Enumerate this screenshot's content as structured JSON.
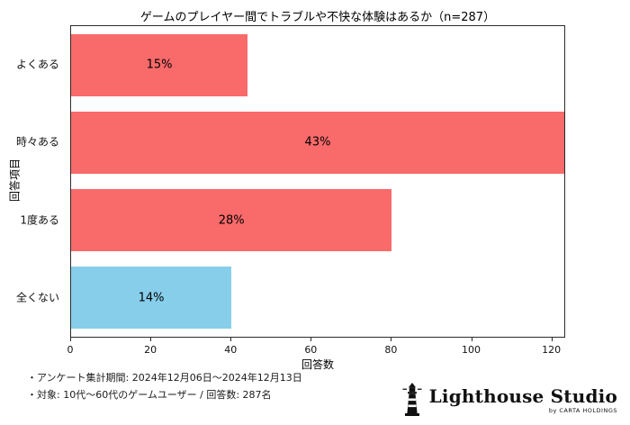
{
  "chart_data": {
    "type": "bar",
    "orientation": "horizontal",
    "title": "ゲームのプレイヤー間でトラブルや不快な体験はあるか（n=287）",
    "categories": [
      "よくある",
      "時々ある",
      "1度ある",
      "全くない"
    ],
    "values": [
      44,
      123,
      80,
      40
    ],
    "percent_labels": [
      "15%",
      "43%",
      "28%",
      "14%"
    ],
    "bar_colors": [
      "#F96A6A",
      "#F96A6A",
      "#F96A6A",
      "#87CEEB"
    ],
    "xlabel": "回答数",
    "ylabel": "回答項目",
    "xlim": [
      0,
      123
    ],
    "xticks": [
      0,
      20,
      40,
      60,
      80,
      100,
      120
    ],
    "grid": false,
    "legend": "none",
    "n_total": 287
  },
  "footnotes": [
    "・アンケート集計期間: 2024年12月06日～2024年12月13日",
    "・対象: 10代～60代のゲームユーザー / 回答数: 287名"
  ],
  "logo": {
    "name": "Lighthouse Studio",
    "sub": "by CARTA HOLDINGS"
  }
}
